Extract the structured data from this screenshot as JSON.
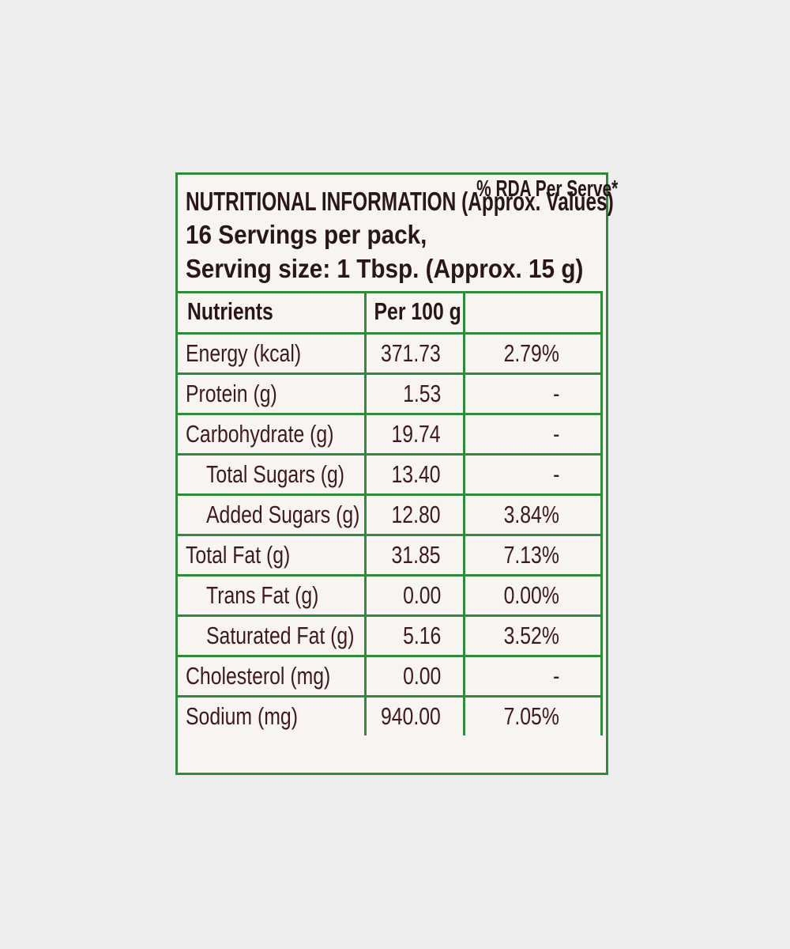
{
  "header": {
    "title": "NUTRITIONAL INFORMATION (Approx. Values)",
    "servings": "16 Servings per pack,",
    "serving_size": "Serving size: 1 Tbsp. (Approx. 15 g)"
  },
  "table": {
    "columns": [
      "Nutrients",
      "Per 100 g",
      "% RDA Per Serve*"
    ],
    "rows": [
      {
        "cells": [
          "Energy (kcal)",
          "371.73",
          "2.79%"
        ],
        "level": 0
      },
      {
        "cells": [
          "Protein (g)",
          "1.53",
          "-"
        ],
        "level": 0
      },
      {
        "cells": [
          "Carbohydrate (g)",
          "19.74",
          "-"
        ],
        "level": 0
      },
      {
        "cells": [
          "Total Sugars (g)",
          "13.40",
          "-"
        ],
        "level": 1
      },
      {
        "cells": [
          "Added Sugars (g)",
          "12.80",
          "3.84%"
        ],
        "level": 1
      },
      {
        "cells": [
          "Total Fat (g)",
          "31.85",
          "7.13%"
        ],
        "level": 0
      },
      {
        "cells": [
          "Trans Fat (g)",
          "0.00",
          "0.00%"
        ],
        "level": 1
      },
      {
        "cells": [
          "Saturated Fat (g)",
          "5.16",
          "3.52%"
        ],
        "level": 1
      },
      {
        "cells": [
          "Cholesterol (mg)",
          "0.00",
          "-"
        ],
        "level": 0
      },
      {
        "cells": [
          "Sodium (mg)",
          "940.00",
          "7.05%"
        ],
        "level": 0
      }
    ]
  }
}
